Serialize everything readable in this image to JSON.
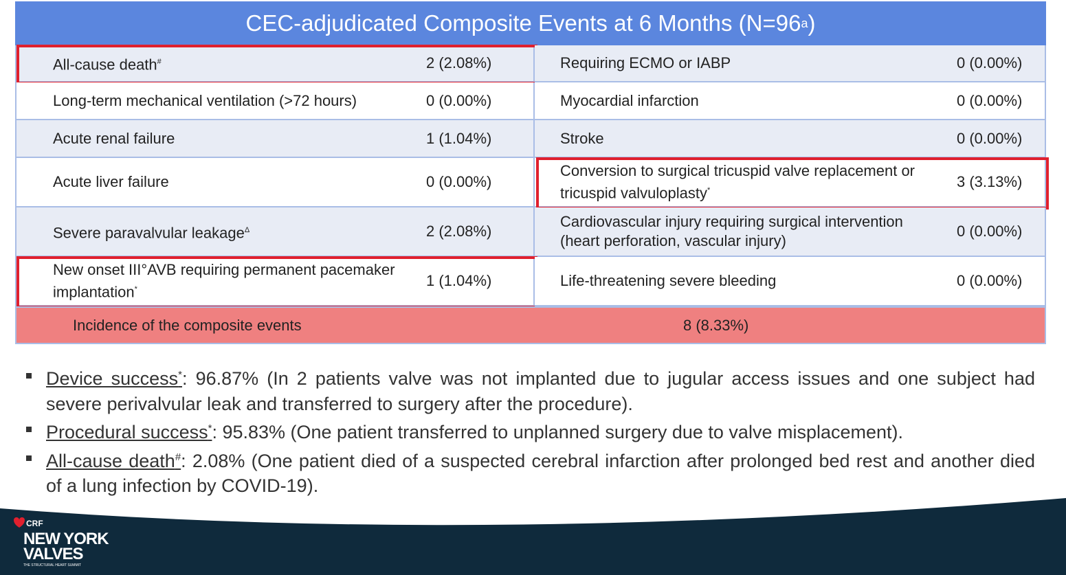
{
  "title": {
    "text": "CEC-adjudicated Composite Events at 6 Months (N=96",
    "sup": "a",
    "end": ")"
  },
  "table": {
    "rows": [
      {
        "left": {
          "label": "All-cause death",
          "sup": "#",
          "value": "2 (2.08%)",
          "highlight": true
        },
        "right": {
          "label": "Requiring ECMO or IABP",
          "value": "0 (0.00%)"
        }
      },
      {
        "left": {
          "label": "Long-term mechanical ventilation (>72 hours)",
          "value": "0 (0.00%)"
        },
        "right": {
          "label": "Myocardial infarction",
          "value": "0 (0.00%)"
        }
      },
      {
        "left": {
          "label": "Acute renal failure",
          "value": "1 (1.04%)"
        },
        "right": {
          "label": "Stroke",
          "value": "0 (0.00%)"
        }
      },
      {
        "left": {
          "label": "Acute liver failure",
          "value": "0 (0.00%)"
        },
        "right": {
          "label": "Conversion to surgical tricuspid valve replacement or tricuspid valvuloplasty",
          "sup": "*",
          "value": "3 (3.13%)",
          "highlight": true
        }
      },
      {
        "left": {
          "label": "Severe paravalvular leakage",
          "sup": "Δ",
          "value": "2 (2.08%)"
        },
        "right": {
          "label": "Cardiovascular injury requiring surgical intervention (heart perforation, vascular injury)",
          "value": "0 (0.00%)"
        }
      },
      {
        "left": {
          "label": "New onset III°AVB requiring permanent pacemaker implantation",
          "sup": "*",
          "value": "1 (1.04%)",
          "highlight": true
        },
        "right": {
          "label": "Life-threatening severe bleeding",
          "value": "0 (0.00%)"
        }
      }
    ],
    "total": {
      "label": "Incidence of the composite events",
      "value": "8 (8.33%)"
    }
  },
  "notes": [
    {
      "term": "Device success",
      "sup": "*",
      "text": ": 96.87% (In 2 patients valve was not implanted due to jugular access issues and one subject had severe perivalvular leak and transferred to surgery after the procedure)."
    },
    {
      "term": "Procedural success",
      "sup": "*",
      "text": ": 95.83% (One patient transferred to unplanned surgery due to valve misplacement)."
    },
    {
      "term": "All-cause death",
      "sup": "#",
      "text": ": 2.08% (One patient died of a suspected cerebral infarction after prolonged bed rest and another died of a lung infection by COVID-19)."
    }
  ],
  "logo": {
    "brand": "CRF",
    "line1": "NEW YORK",
    "line2": "VALVES",
    "tagline": "THE STRUCTURAL HEART SUMMIT"
  }
}
